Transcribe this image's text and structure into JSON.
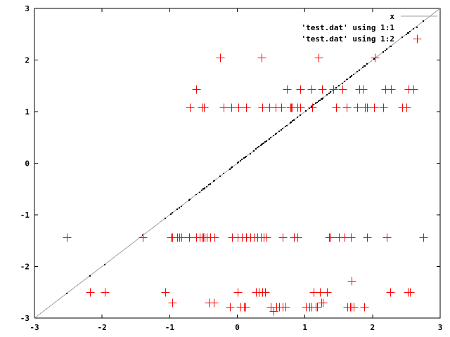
{
  "chart_data": {
    "type": "scatter",
    "title": "",
    "xlabel": "",
    "ylabel": "",
    "xlim": [
      -3,
      3
    ],
    "ylim": [
      -3,
      3
    ],
    "xticks": [
      "-3",
      "-2",
      "-1",
      "0",
      "1",
      "2",
      "3"
    ],
    "yticks": [
      "-3",
      "-2",
      "-1",
      "0",
      "1",
      "2",
      "3"
    ],
    "grid": false,
    "legend_position": "top-right-inside",
    "colors": {
      "border": "#000000",
      "function_line": "#a0a0a0",
      "dots_series": "#000000",
      "plus_series": "#ff0000",
      "background": "#ffffff"
    },
    "legend": [
      {
        "label": "x",
        "style": "line"
      },
      {
        "label": "'test.dat' using 1:1",
        "style": "dots"
      },
      {
        "label": "'test.dat' using 1:2",
        "style": "plus"
      }
    ],
    "series": [
      {
        "name": "function-x",
        "label": "x",
        "type": "line",
        "from": [
          -3,
          -3
        ],
        "to": [
          3,
          3
        ]
      },
      {
        "name": "testdat-1-1",
        "label": "'test.dat' using 1:1",
        "type": "dots",
        "note": "column 1 vs column 1: one black dot at (x,x) for every x of the plus series, lying on the diagonal"
      },
      {
        "name": "testdat-1-2",
        "label": "'test.dat' using 1:2",
        "type": "points",
        "marker": "plus",
        "points": [
          [
            -0.25,
            2.05
          ],
          [
            0.36,
            2.05
          ],
          [
            1.2,
            2.05
          ],
          [
            2.03,
            2.05
          ],
          [
            -0.61,
            1.44
          ],
          [
            0.73,
            1.44
          ],
          [
            0.93,
            1.44
          ],
          [
            1.1,
            1.44
          ],
          [
            1.25,
            1.44
          ],
          [
            1.42,
            1.44
          ],
          [
            1.55,
            1.44
          ],
          [
            1.8,
            1.44
          ],
          [
            1.86,
            1.44
          ],
          [
            2.19,
            1.44
          ],
          [
            2.27,
            1.44
          ],
          [
            2.53,
            1.44
          ],
          [
            2.61,
            1.44
          ],
          [
            -0.7,
            1.08
          ],
          [
            -0.52,
            1.08
          ],
          [
            -0.49,
            1.08
          ],
          [
            -0.2,
            1.08
          ],
          [
            -0.09,
            1.08
          ],
          [
            0.02,
            1.08
          ],
          [
            0.13,
            1.08
          ],
          [
            0.37,
            1.08
          ],
          [
            0.47,
            1.08
          ],
          [
            0.57,
            1.08
          ],
          [
            0.65,
            1.08
          ],
          [
            0.78,
            1.08
          ],
          [
            0.8,
            1.08
          ],
          [
            0.82,
            1.08
          ],
          [
            0.89,
            1.08
          ],
          [
            0.93,
            1.08
          ],
          [
            1.11,
            1.08
          ],
          [
            1.46,
            1.08
          ],
          [
            1.62,
            1.08
          ],
          [
            1.77,
            1.08
          ],
          [
            1.89,
            1.08
          ],
          [
            1.92,
            1.08
          ],
          [
            2.02,
            1.08
          ],
          [
            2.16,
            1.08
          ],
          [
            2.44,
            1.08
          ],
          [
            2.5,
            1.08
          ],
          [
            -2.52,
            -1.43
          ],
          [
            -1.4,
            -1.43
          ],
          [
            -0.98,
            -1.43
          ],
          [
            -0.96,
            -1.43
          ],
          [
            -0.89,
            -1.43
          ],
          [
            -0.86,
            -1.43
          ],
          [
            -0.83,
            -1.43
          ],
          [
            -0.71,
            -1.43
          ],
          [
            -0.61,
            -1.43
          ],
          [
            -0.56,
            -1.43
          ],
          [
            -0.53,
            -1.43
          ],
          [
            -0.5,
            -1.43
          ],
          [
            -0.48,
            -1.43
          ],
          [
            -0.45,
            -1.43
          ],
          [
            -0.4,
            -1.43
          ],
          [
            -0.34,
            -1.43
          ],
          [
            -0.08,
            -1.43
          ],
          [
            0.01,
            -1.43
          ],
          [
            0.07,
            -1.43
          ],
          [
            0.13,
            -1.43
          ],
          [
            0.19,
            -1.43
          ],
          [
            0.24,
            -1.43
          ],
          [
            0.3,
            -1.43
          ],
          [
            0.35,
            -1.43
          ],
          [
            0.39,
            -1.43
          ],
          [
            0.43,
            -1.43
          ],
          [
            0.67,
            -1.43
          ],
          [
            0.84,
            -1.43
          ],
          [
            0.89,
            -1.43
          ],
          [
            1.36,
            -1.43
          ],
          [
            1.38,
            -1.43
          ],
          [
            1.5,
            -1.43
          ],
          [
            1.59,
            -1.43
          ],
          [
            1.68,
            -1.43
          ],
          [
            1.92,
            -1.43
          ],
          [
            2.21,
            -1.43
          ],
          [
            2.75,
            -1.43
          ],
          [
            1.69,
            -2.28
          ],
          [
            -2.18,
            -2.5
          ],
          [
            -1.96,
            -2.5
          ],
          [
            -1.07,
            -2.5
          ],
          [
            0.01,
            -2.5
          ],
          [
            0.28,
            -2.5
          ],
          [
            0.32,
            -2.5
          ],
          [
            0.37,
            -2.5
          ],
          [
            0.41,
            -2.5
          ],
          [
            1.13,
            -2.5
          ],
          [
            1.22,
            -2.5
          ],
          [
            1.33,
            -2.5
          ],
          [
            2.26,
            -2.5
          ],
          [
            2.52,
            -2.5
          ],
          [
            2.55,
            -2.5
          ],
          [
            -0.96,
            -2.7
          ],
          [
            -0.42,
            -2.7
          ],
          [
            -0.35,
            -2.7
          ],
          [
            1.24,
            -2.7
          ],
          [
            1.26,
            -2.7
          ],
          [
            -0.11,
            -2.78
          ],
          [
            0.05,
            -2.78
          ],
          [
            0.1,
            -2.78
          ],
          [
            0.12,
            -2.78
          ],
          [
            0.49,
            -2.78
          ],
          [
            0.58,
            -2.78
          ],
          [
            0.62,
            -2.78
          ],
          [
            0.67,
            -2.78
          ],
          [
            0.71,
            -2.78
          ],
          [
            1.01,
            -2.78
          ],
          [
            1.07,
            -2.78
          ],
          [
            1.1,
            -2.78
          ],
          [
            1.16,
            -2.78
          ],
          [
            1.18,
            -2.78
          ],
          [
            1.63,
            -2.78
          ],
          [
            1.67,
            -2.78
          ],
          [
            1.69,
            -2.78
          ],
          [
            1.72,
            -2.78
          ],
          [
            1.88,
            -2.78
          ],
          [
            0.54,
            -2.86
          ]
        ]
      }
    ]
  }
}
